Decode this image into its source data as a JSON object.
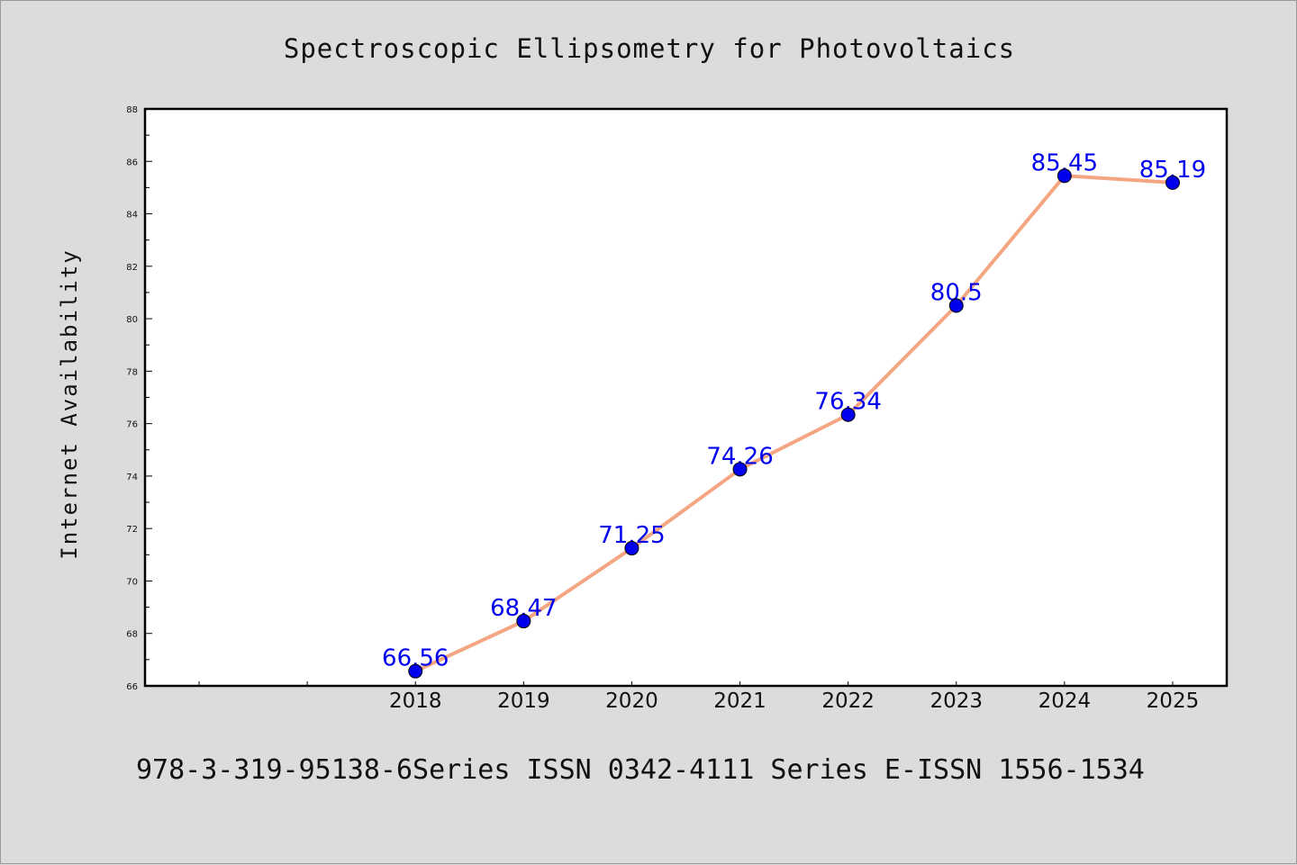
{
  "chart_data": {
    "type": "line",
    "title": "Spectroscopic Ellipsometry for Photovoltaics",
    "ylabel": "Internet Availability",
    "xlabel": "",
    "x": [
      2018,
      2019,
      2020,
      2021,
      2022,
      2023,
      2024,
      2025
    ],
    "values": [
      66.56,
      68.47,
      71.25,
      74.26,
      76.34,
      80.5,
      85.45,
      85.19
    ],
    "data_labels": [
      "66.56",
      "68.47",
      "71.25",
      "74.26",
      "76.34",
      "80.5",
      "85.45",
      "85.19"
    ],
    "ylim": [
      66,
      88
    ],
    "yticks": [
      66,
      68,
      70,
      72,
      74,
      76,
      78,
      80,
      82,
      84,
      86,
      88
    ],
    "xlim": [
      2015.5,
      2025.5
    ],
    "grid": false,
    "legend": "none",
    "line_color": "#f4a582",
    "marker_color": "#0000ee",
    "label_color": "#0000ee"
  },
  "footer": {
    "text": "978-3-319-95138-6Series ISSN 0342-4111 Series E-ISSN 1556-1534"
  }
}
